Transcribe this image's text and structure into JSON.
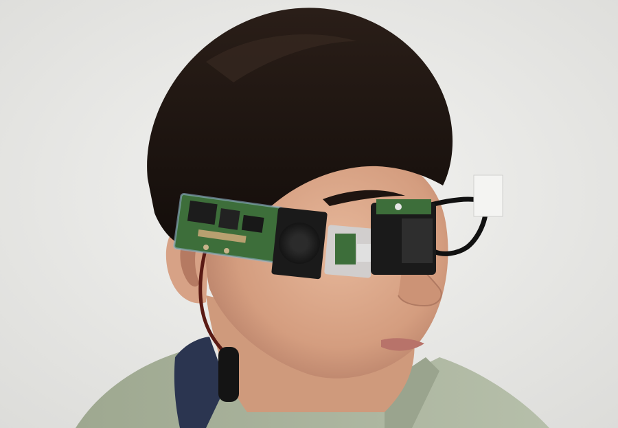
{
  "image": {
    "subject": "person",
    "colors": {
      "background": "#ececea",
      "hair": "#1f1612",
      "skin": "#d9a98c",
      "shirt": "#a8b29b",
      "collar": "#2b3550",
      "pcb": "#3d6e3a",
      "device_body": "#1a1a1a",
      "wire": "#5a1a14",
      "frame": "#111111"
    }
  }
}
